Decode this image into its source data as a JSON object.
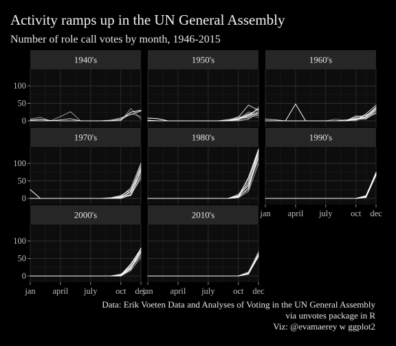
{
  "chart_data": {
    "type": "line",
    "title": "Activity ramps up in the UN General Assembly",
    "subtitle": "Number of role call votes by month, 1946-2015",
    "caption": [
      "Data: Erik Voeten Data and Analyses of Voting in the UN General Assembly",
      "via unvotes package in R",
      "Viz: @evamaerey w ggplot2"
    ],
    "xlabel": "",
    "ylabel": "",
    "x_ticks": [
      {
        "month": 1,
        "label": "jan"
      },
      {
        "month": 4,
        "label": "april"
      },
      {
        "month": 7,
        "label": "july"
      },
      {
        "month": 10,
        "label": "oct"
      },
      {
        "month": 12,
        "label": "dec"
      }
    ],
    "y_ticks": [
      0,
      50,
      100
    ],
    "xlim": [
      1,
      12
    ],
    "ylim": [
      0,
      140
    ],
    "grid": true,
    "legend": "none",
    "colors": {
      "background": "#000000",
      "panel": "#0d0d0d",
      "strip": "#262626",
      "line": "#ffffff"
    },
    "panels": [
      {
        "label": "1940's",
        "series": [
          [
            2,
            4,
            1,
            0,
            0,
            0,
            0,
            0,
            0,
            4,
            25,
            30
          ],
          [
            5,
            10,
            0,
            12,
            26,
            0,
            0,
            0,
            0,
            0,
            35,
            5
          ],
          [
            0,
            0,
            0,
            3,
            6,
            0,
            0,
            0,
            2,
            8,
            18,
            28
          ],
          [
            1,
            0,
            0,
            0,
            0,
            0,
            0,
            0,
            0,
            2,
            20,
            12
          ]
        ]
      },
      {
        "label": "1950's",
        "series": [
          [
            8,
            6,
            0,
            0,
            0,
            0,
            0,
            0,
            0,
            5,
            15,
            35
          ],
          [
            0,
            0,
            0,
            0,
            0,
            0,
            0,
            0,
            4,
            6,
            25,
            20
          ],
          [
            0,
            0,
            0,
            0,
            0,
            0,
            0,
            0,
            0,
            10,
            45,
            30
          ],
          [
            0,
            0,
            0,
            0,
            0,
            0,
            0,
            0,
            0,
            2,
            10,
            40
          ],
          [
            2,
            0,
            0,
            0,
            0,
            0,
            0,
            0,
            0,
            5,
            20,
            15
          ],
          [
            0,
            0,
            0,
            0,
            0,
            0,
            0,
            0,
            3,
            12,
            8,
            28
          ],
          [
            0,
            0,
            0,
            0,
            0,
            0,
            0,
            0,
            0,
            0,
            5,
            22
          ],
          [
            0,
            0,
            0,
            0,
            0,
            0,
            0,
            0,
            0,
            8,
            15,
            10
          ],
          [
            0,
            0,
            0,
            0,
            0,
            0,
            0,
            0,
            2,
            3,
            18,
            33
          ],
          [
            0,
            0,
            0,
            0,
            0,
            0,
            0,
            0,
            0,
            6,
            12,
            25
          ]
        ]
      },
      {
        "label": "1960's",
        "series": [
          [
            0,
            0,
            0,
            48,
            0,
            0,
            0,
            0,
            0,
            5,
            10,
            40
          ],
          [
            0,
            0,
            0,
            0,
            0,
            0,
            0,
            0,
            0,
            10,
            15,
            30
          ],
          [
            5,
            3,
            0,
            0,
            0,
            0,
            0,
            0,
            3,
            2,
            20,
            45
          ],
          [
            0,
            0,
            0,
            0,
            0,
            0,
            0,
            5,
            0,
            15,
            8,
            25
          ],
          [
            0,
            0,
            0,
            0,
            0,
            0,
            0,
            0,
            0,
            5,
            12,
            35
          ],
          [
            0,
            0,
            0,
            0,
            0,
            0,
            0,
            0,
            0,
            3,
            18,
            20
          ],
          [
            0,
            0,
            0,
            0,
            0,
            0,
            0,
            0,
            0,
            8,
            5,
            32
          ],
          [
            0,
            0,
            0,
            0,
            0,
            0,
            0,
            0,
            0,
            0,
            10,
            28
          ],
          [
            0,
            0,
            0,
            0,
            0,
            0,
            0,
            0,
            0,
            12,
            15,
            38
          ],
          [
            0,
            0,
            0,
            0,
            0,
            0,
            0,
            0,
            0,
            4,
            6,
            22
          ]
        ]
      },
      {
        "label": "1970's",
        "series": [
          [
            25,
            0,
            0,
            0,
            0,
            0,
            0,
            0,
            0,
            0,
            10,
            80
          ],
          [
            0,
            0,
            0,
            0,
            0,
            0,
            0,
            0,
            0,
            2,
            20,
            95
          ],
          [
            0,
            0,
            0,
            0,
            0,
            0,
            0,
            0,
            0,
            5,
            30,
            100
          ],
          [
            0,
            0,
            0,
            0,
            0,
            0,
            0,
            0,
            0,
            3,
            15,
            70
          ],
          [
            0,
            0,
            0,
            0,
            0,
            0,
            0,
            0,
            2,
            8,
            25,
            85
          ],
          [
            0,
            0,
            0,
            0,
            0,
            0,
            0,
            0,
            0,
            6,
            10,
            60
          ],
          [
            0,
            0,
            0,
            0,
            0,
            0,
            0,
            0,
            0,
            4,
            18,
            90
          ],
          [
            0,
            0,
            0,
            0,
            0,
            0,
            0,
            0,
            0,
            0,
            12,
            55
          ],
          [
            0,
            0,
            0,
            0,
            0,
            0,
            0,
            0,
            0,
            2,
            22,
            75
          ],
          [
            0,
            0,
            0,
            0,
            0,
            0,
            0,
            0,
            0,
            3,
            8,
            65
          ]
        ]
      },
      {
        "label": "1980's",
        "series": [
          [
            0,
            0,
            0,
            0,
            0,
            0,
            0,
            0,
            0,
            5,
            60,
            145
          ],
          [
            0,
            0,
            0,
            0,
            0,
            0,
            0,
            0,
            0,
            10,
            55,
            130
          ],
          [
            0,
            0,
            0,
            0,
            0,
            0,
            0,
            0,
            0,
            8,
            45,
            140
          ],
          [
            0,
            0,
            0,
            0,
            0,
            0,
            0,
            0,
            0,
            5,
            40,
            120
          ],
          [
            0,
            0,
            0,
            0,
            0,
            0,
            0,
            0,
            0,
            3,
            30,
            135
          ],
          [
            0,
            0,
            0,
            0,
            0,
            0,
            0,
            0,
            0,
            12,
            35,
            110
          ],
          [
            0,
            0,
            0,
            0,
            0,
            0,
            0,
            0,
            0,
            6,
            25,
            125
          ],
          [
            0,
            0,
            0,
            0,
            0,
            0,
            0,
            0,
            0,
            4,
            50,
            138
          ],
          [
            0,
            0,
            0,
            0,
            0,
            0,
            0,
            0,
            0,
            7,
            38,
            115
          ],
          [
            0,
            0,
            0,
            0,
            0,
            0,
            0,
            0,
            0,
            2,
            20,
            100
          ]
        ]
      },
      {
        "label": "1990's",
        "series": [
          [
            0,
            0,
            0,
            0,
            0,
            0,
            0,
            0,
            0,
            0,
            5,
            70
          ],
          [
            0,
            0,
            0,
            0,
            0,
            0,
            0,
            0,
            0,
            0,
            3,
            75
          ],
          [
            0,
            0,
            0,
            0,
            0,
            0,
            0,
            0,
            0,
            0,
            8,
            72
          ],
          [
            0,
            0,
            0,
            0,
            0,
            0,
            0,
            0,
            0,
            0,
            2,
            68
          ],
          [
            0,
            0,
            0,
            0,
            0,
            0,
            0,
            0,
            0,
            0,
            6,
            74
          ],
          [
            0,
            0,
            0,
            0,
            0,
            0,
            0,
            0,
            0,
            0,
            4,
            65
          ],
          [
            0,
            0,
            0,
            0,
            0,
            0,
            0,
            0,
            0,
            0,
            3,
            71
          ],
          [
            0,
            0,
            0,
            0,
            0,
            0,
            0,
            0,
            0,
            0,
            5,
            69
          ],
          [
            0,
            0,
            0,
            0,
            0,
            0,
            0,
            0,
            0,
            0,
            7,
            73
          ],
          [
            0,
            0,
            0,
            0,
            0,
            0,
            0,
            0,
            0,
            0,
            4,
            66
          ]
        ]
      },
      {
        "label": "2000's",
        "series": [
          [
            0,
            0,
            0,
            0,
            0,
            0,
            0,
            0,
            0,
            0,
            20,
            80
          ],
          [
            0,
            0,
            0,
            0,
            0,
            0,
            0,
            0,
            0,
            2,
            30,
            75
          ],
          [
            0,
            0,
            0,
            0,
            0,
            0,
            0,
            0,
            0,
            5,
            25,
            70
          ],
          [
            0,
            0,
            0,
            0,
            0,
            0,
            0,
            0,
            0,
            0,
            15,
            60
          ],
          [
            0,
            0,
            0,
            0,
            0,
            0,
            0,
            0,
            0,
            3,
            35,
            78
          ],
          [
            0,
            0,
            0,
            0,
            0,
            0,
            0,
            0,
            0,
            0,
            28,
            55
          ],
          [
            0,
            0,
            0,
            0,
            0,
            0,
            0,
            0,
            0,
            4,
            22,
            65
          ],
          [
            0,
            0,
            0,
            0,
            0,
            0,
            0,
            0,
            0,
            0,
            18,
            50
          ],
          [
            0,
            0,
            0,
            0,
            0,
            0,
            0,
            0,
            0,
            2,
            32,
            72
          ],
          [
            0,
            0,
            0,
            0,
            0,
            0,
            0,
            0,
            0,
            0,
            24,
            68
          ]
        ]
      },
      {
        "label": "2010's",
        "series": [
          [
            0,
            0,
            0,
            0,
            0,
            0,
            0,
            0,
            0,
            0,
            8,
            65
          ],
          [
            0,
            0,
            0,
            0,
            0,
            0,
            0,
            0,
            0,
            0,
            10,
            60
          ],
          [
            0,
            0,
            0,
            0,
            0,
            0,
            0,
            0,
            0,
            0,
            6,
            55
          ],
          [
            0,
            0,
            0,
            0,
            0,
            0,
            0,
            0,
            0,
            0,
            12,
            70
          ],
          [
            0,
            0,
            0,
            0,
            0,
            0,
            0,
            0,
            0,
            0,
            5,
            58
          ],
          [
            0,
            0,
            0,
            0,
            0,
            0,
            0,
            0,
            0,
            0,
            9,
            62
          ]
        ]
      }
    ]
  }
}
